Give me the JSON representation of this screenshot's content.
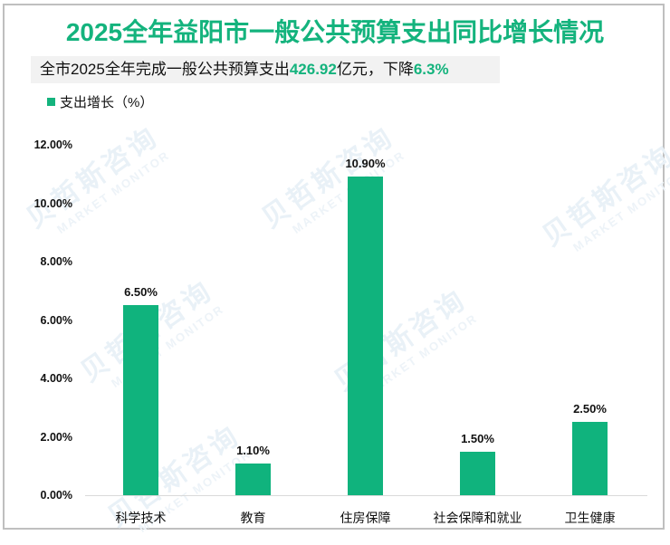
{
  "title": {
    "year": "2025",
    "rest": "全年益阳市一般公共预算支出同比增长情况"
  },
  "subtitle": {
    "prefix": "全市2025全年完成一般公共预算支出",
    "amount": "426.92",
    "mid": "亿元，下降",
    "decline": "6.3%"
  },
  "legend": {
    "label": "支出增长（%）",
    "color": "#14b37d"
  },
  "watermark": {
    "cn": "贝哲斯咨询",
    "en": "MARKET MONITOR"
  },
  "colors": {
    "accent": "#14b37d",
    "bar": "#10b37d",
    "band": "#f2f2f2",
    "frame": "#bfbfbf"
  },
  "chart_data": {
    "type": "bar",
    "title": "2025全年益阳市一般公共预算支出同比增长情况",
    "subtitle": "全市2025全年完成一般公共预算支出426.92亿元，下降6.3%",
    "categories": [
      "科学技术",
      "教育",
      "住房保障",
      "社会保障和就业",
      "卫生健康"
    ],
    "series": [
      {
        "name": "支出增长（%）",
        "values": [
          6.5,
          1.1,
          10.9,
          1.5,
          2.5
        ]
      }
    ],
    "value_labels": [
      "6.50%",
      "1.10%",
      "10.90%",
      "1.50%",
      "2.50%"
    ],
    "xlabel": "",
    "ylabel": "",
    "ylim": [
      0,
      12
    ],
    "yticks": [
      "0.00%",
      "2.00%",
      "4.00%",
      "6.00%",
      "8.00%",
      "10.00%",
      "12.00%"
    ],
    "grid": false,
    "legend_position": "top-left"
  }
}
